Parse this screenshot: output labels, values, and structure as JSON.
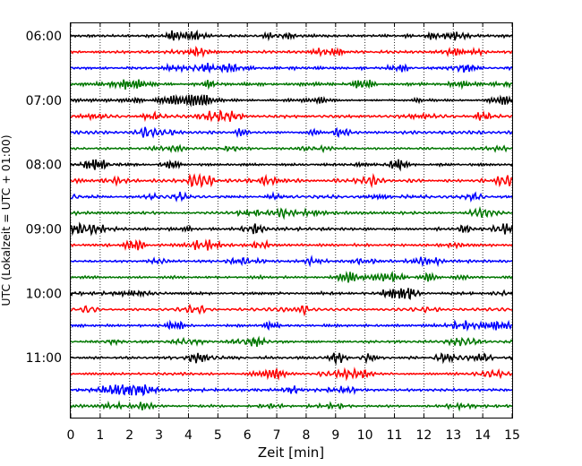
{
  "chart_data": {
    "type": "line",
    "title": "",
    "xlabel": "Zeit  [min]",
    "ylabel": "UTC (Lokalzeit = UTC + 01:00)",
    "xlim": [
      0,
      15
    ],
    "x_ticks": [
      0,
      1,
      2,
      3,
      4,
      5,
      6,
      7,
      8,
      9,
      10,
      11,
      12,
      13,
      14,
      15
    ],
    "x_tick_labels": [
      "0",
      "1",
      "2",
      "3",
      "4",
      "5",
      "6",
      "7",
      "8",
      "9",
      "10",
      "11",
      "12",
      "13",
      "14",
      "15"
    ],
    "y_tick_labels": [
      "06:00",
      "07:00",
      "08:00",
      "09:00",
      "10:00",
      "11:00"
    ],
    "grid": "vertical dotted",
    "trace_colors": [
      "#000000",
      "#ff0000",
      "#0000ff",
      "#007700"
    ],
    "traces": [
      {
        "start": "06:00",
        "color": "#000000"
      },
      {
        "start": "06:15",
        "color": "#ff0000"
      },
      {
        "start": "06:30",
        "color": "#0000ff"
      },
      {
        "start": "06:45",
        "color": "#007700"
      },
      {
        "start": "07:00",
        "color": "#000000"
      },
      {
        "start": "07:15",
        "color": "#ff0000"
      },
      {
        "start": "07:30",
        "color": "#0000ff"
      },
      {
        "start": "07:45",
        "color": "#007700"
      },
      {
        "start": "08:00",
        "color": "#000000"
      },
      {
        "start": "08:15",
        "color": "#ff0000"
      },
      {
        "start": "08:30",
        "color": "#0000ff"
      },
      {
        "start": "08:45",
        "color": "#007700"
      },
      {
        "start": "09:00",
        "color": "#000000"
      },
      {
        "start": "09:15",
        "color": "#ff0000"
      },
      {
        "start": "09:30",
        "color": "#0000ff"
      },
      {
        "start": "09:45",
        "color": "#007700"
      },
      {
        "start": "10:00",
        "color": "#000000"
      },
      {
        "start": "10:15",
        "color": "#ff0000"
      },
      {
        "start": "10:30",
        "color": "#0000ff"
      },
      {
        "start": "10:45",
        "color": "#007700"
      },
      {
        "start": "11:00",
        "color": "#000000"
      },
      {
        "start": "11:15",
        "color": "#ff0000"
      },
      {
        "start": "11:30",
        "color": "#0000ff"
      },
      {
        "start": "11:45",
        "color": "#007700"
      }
    ]
  }
}
